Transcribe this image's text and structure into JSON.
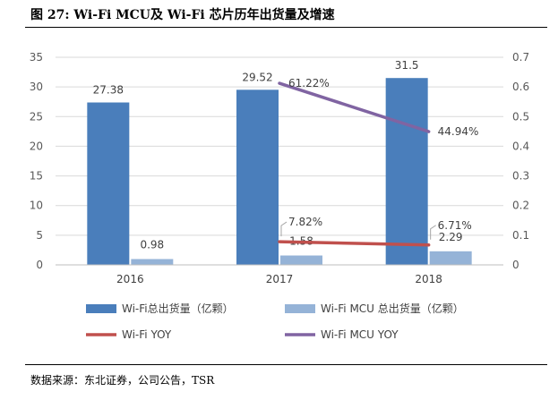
{
  "figure": {
    "title": "图 27: Wi-Fi MCU及 Wi-Fi 芯片历年出货量及增速",
    "source": "数据来源：东北证券，公司公告，TSR"
  },
  "colors": {
    "bar_wifi": "#4a7ebb",
    "bar_mcu": "#95b3d7",
    "line_wifi_yoy": "#c0504d",
    "line_mcu_yoy": "#8064a2"
  },
  "chart_data": {
    "type": "bar",
    "categories": [
      "2016",
      "2017",
      "2018"
    ],
    "y_left": {
      "lim": [
        0,
        35
      ],
      "ticks": [
        "0",
        "5",
        "10",
        "15",
        "20",
        "25",
        "30",
        "35"
      ]
    },
    "y_right": {
      "lim": [
        0,
        0.7
      ],
      "ticks": [
        "0",
        "0.1",
        "0.2",
        "0.3",
        "0.4",
        "0.5",
        "0.6",
        "0.7"
      ]
    },
    "grid": true,
    "legend_position": "bottom",
    "bar_series": [
      {
        "name": "Wi-Fi总出货量（亿颗）",
        "values": [
          27.38,
          29.52,
          31.5
        ],
        "labels": [
          "27.38",
          "29.52",
          "31.5"
        ],
        "color_key": "bar_wifi"
      },
      {
        "name": "Wi-Fi MCU 总出货量（亿颗）",
        "values": [
          0.98,
          1.58,
          2.29
        ],
        "labels": [
          "0.98",
          "1.58",
          "2.29"
        ],
        "color_key": "bar_mcu"
      }
    ],
    "line_series": [
      {
        "name": "Wi-Fi YOY",
        "axis": "right",
        "values": [
          null,
          0.0782,
          0.0671
        ],
        "labels": [
          null,
          "7.82%",
          "6.71%"
        ],
        "color_key": "line_wifi_yoy"
      },
      {
        "name": "Wi-Fi MCU YOY",
        "axis": "right",
        "values": [
          null,
          0.6122,
          0.4494
        ],
        "labels": [
          null,
          "61.22%",
          "44.94%"
        ],
        "color_key": "line_mcu_yoy"
      }
    ]
  }
}
